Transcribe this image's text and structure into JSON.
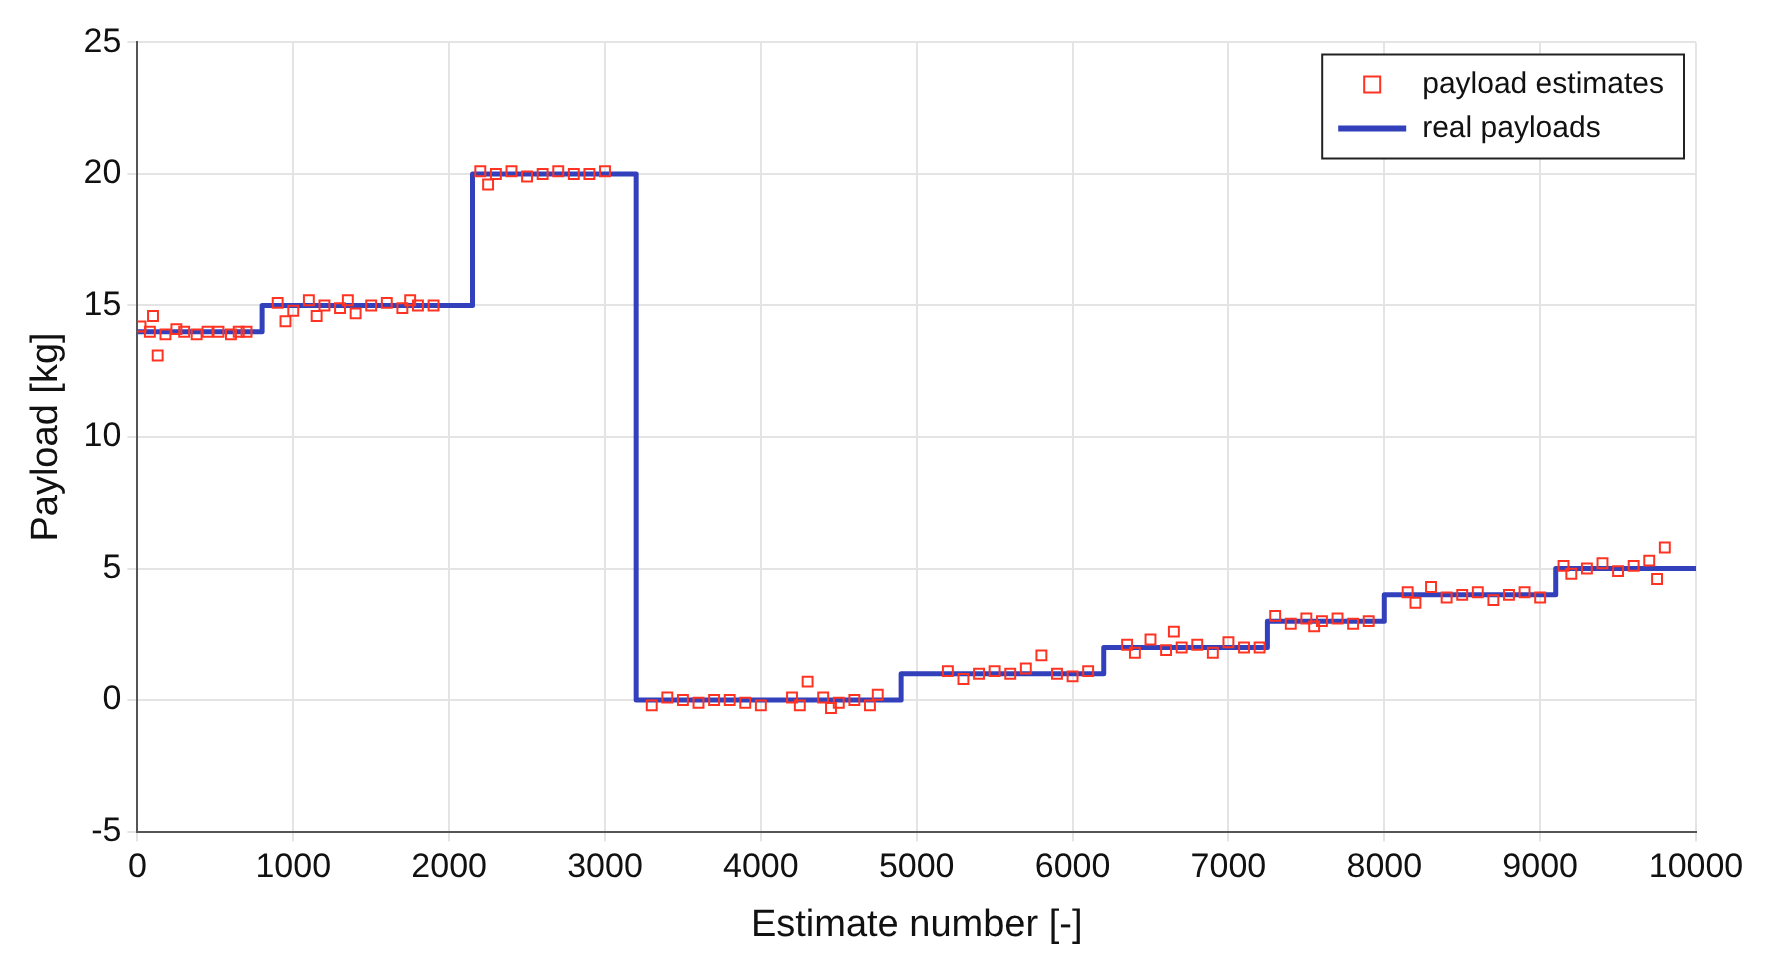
{
  "chart_data": {
    "type": "scatter",
    "xlabel": "Estimate number [-]",
    "ylabel": "Payload [kg]",
    "xlim": [
      0,
      10000
    ],
    "ylim": [
      -5,
      25
    ],
    "xticks": [
      0,
      1000,
      2000,
      3000,
      4000,
      5000,
      6000,
      7000,
      8000,
      9000,
      10000
    ],
    "yticks": [
      -5,
      0,
      5,
      10,
      15,
      20,
      25
    ],
    "grid": true,
    "legend": "top right",
    "series": [
      {
        "name": "payload estimates",
        "marker": "square",
        "color": "#ff3322",
        "x": [
          20,
          80,
          100,
          130,
          180,
          250,
          300,
          380,
          450,
          520,
          600,
          650,
          700,
          900,
          950,
          1000,
          1100,
          1150,
          1200,
          1300,
          1350,
          1400,
          1500,
          1600,
          1700,
          1750,
          1800,
          1900,
          2200,
          2250,
          2300,
          2400,
          2500,
          2600,
          2700,
          2800,
          2900,
          3000,
          3300,
          3400,
          3500,
          3600,
          3700,
          3800,
          3900,
          4000,
          4200,
          4250,
          4300,
          4400,
          4450,
          4500,
          4600,
          4700,
          4750,
          5200,
          5300,
          5400,
          5500,
          5600,
          5700,
          5800,
          5900,
          6000,
          6100,
          6350,
          6400,
          6500,
          6600,
          6650,
          6700,
          6800,
          6900,
          7000,
          7100,
          7200,
          7300,
          7400,
          7500,
          7550,
          7600,
          7700,
          7800,
          7900,
          8150,
          8200,
          8300,
          8400,
          8500,
          8600,
          8700,
          8800,
          8900,
          9000,
          9150,
          9200,
          9300,
          9400,
          9500,
          9600,
          9700,
          9750,
          9800
        ],
        "values": [
          14.2,
          14.0,
          14.6,
          13.1,
          13.9,
          14.1,
          14.0,
          13.9,
          14.0,
          14.0,
          13.9,
          14.0,
          14.0,
          15.1,
          14.4,
          14.8,
          15.2,
          14.6,
          15.0,
          14.9,
          15.2,
          14.7,
          15.0,
          15.1,
          14.9,
          15.2,
          15.0,
          15.0,
          20.1,
          19.6,
          20.0,
          20.1,
          19.9,
          20.0,
          20.1,
          20.0,
          20.0,
          20.1,
          -0.2,
          0.1,
          0.0,
          -0.1,
          0.0,
          0.0,
          -0.1,
          -0.2,
          0.1,
          -0.2,
          0.7,
          0.1,
          -0.3,
          -0.1,
          0.0,
          -0.2,
          0.2,
          1.1,
          0.8,
          1.0,
          1.1,
          1.0,
          1.2,
          1.7,
          1.0,
          0.9,
          1.1,
          2.1,
          1.8,
          2.3,
          1.9,
          2.6,
          2.0,
          2.1,
          1.8,
          2.2,
          2.0,
          2.0,
          3.2,
          2.9,
          3.1,
          2.8,
          3.0,
          3.1,
          2.9,
          3.0,
          4.1,
          3.7,
          4.3,
          3.9,
          4.0,
          4.1,
          3.8,
          4.0,
          4.1,
          3.9,
          5.1,
          4.8,
          5.0,
          5.2,
          4.9,
          5.1,
          5.3,
          4.6,
          5.8
        ]
      },
      {
        "name": "real payloads",
        "type": "step",
        "color": "#3340bb",
        "marker": "none",
        "x": [
          0,
          800,
          2150,
          3200,
          4900,
          6200,
          7250,
          8000,
          9100,
          10000
        ],
        "values": [
          14,
          15,
          20,
          0,
          1,
          2,
          3,
          4,
          5,
          5
        ]
      }
    ]
  }
}
